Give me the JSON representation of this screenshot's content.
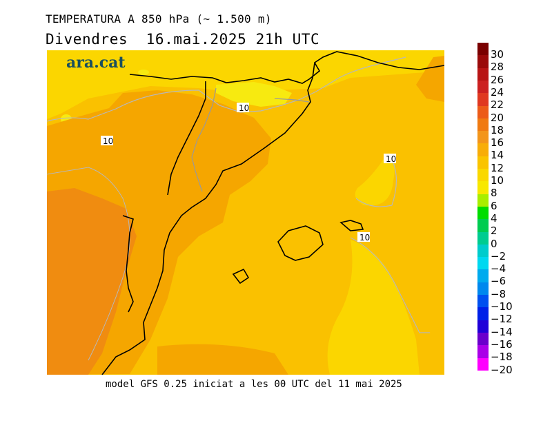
{
  "header": {
    "title": "TEMPERATURA A 850 hPa (~ 1.500 m)",
    "date_line": "Divendres  16.mai.2025 21h UTC"
  },
  "logo": {
    "text": "ara.cat"
  },
  "footer": {
    "text": "model GFS 0.25 iniciat a les 00 UTC del 11 mai 2025"
  },
  "map": {
    "contour_labels": [
      "10",
      "10",
      "10",
      "10"
    ]
  },
  "legend": {
    "colors": [
      "#7a0000",
      "#9a0a0a",
      "#b81414",
      "#cc2020",
      "#e03820",
      "#ec5b18",
      "#f07a10",
      "#f3951a",
      "#f8ad08",
      "#fac400",
      "#fad800",
      "#f8e800",
      "#a8ee00",
      "#00dd00",
      "#00cc50",
      "#00cc90",
      "#00cccc",
      "#00d8f0",
      "#00aaee",
      "#0088ee",
      "#0050f0",
      "#0020e8",
      "#2000d8",
      "#6a00cc",
      "#aa00e8",
      "#ff00ff"
    ],
    "labels": [
      "30",
      "28",
      "26",
      "24",
      "22",
      "20",
      "18",
      "16",
      "14",
      "12",
      "10",
      "8",
      "6",
      "4",
      "2",
      "0",
      "−2",
      "−4",
      "−6",
      "−8",
      "−10",
      "−12",
      "−14",
      "−16",
      "−18",
      "−20"
    ]
  }
}
